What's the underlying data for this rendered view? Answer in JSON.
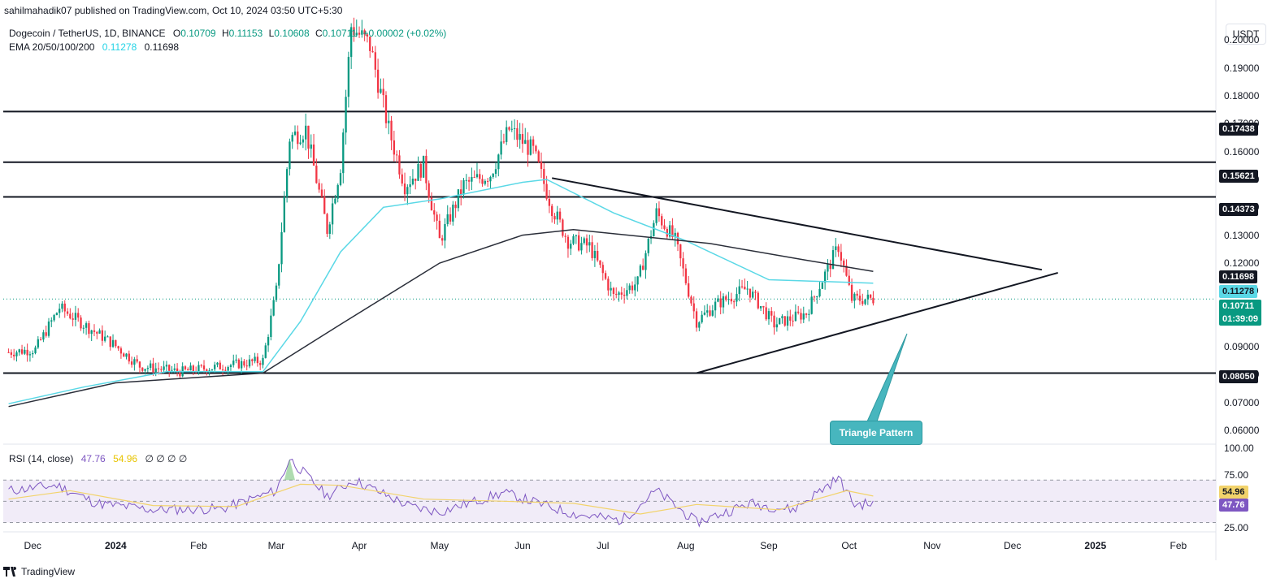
{
  "header": {
    "publisher": "sahilmahadik07 published on TradingView.com, Oct 10, 2024 03:50 UTC+5:30",
    "symbol": "Dogecoin / TetherUS, 1D, BINANCE",
    "ohlc": {
      "o_label": "O",
      "o": "0.10709",
      "h_label": "H",
      "h": "0.11153",
      "l_label": "L",
      "l": "0.10608",
      "c_label": "C",
      "c": "0.10711",
      "change": "+0.00002 (+0.02%)"
    },
    "ema_label": "EMA 20/50/100/200",
    "ema_values": [
      "0.11278",
      "0.11698"
    ],
    "unit": "USDT"
  },
  "rsi_header": {
    "label": "RSI (14, close)",
    "rsi": "47.76",
    "ma": "54.96",
    "extras": "∅ ∅ ∅ ∅"
  },
  "price_axis": [
    "0.20000",
    "0.19000",
    "0.18000",
    "0.17000",
    "0.16000",
    "0.15000",
    "0.14000",
    "0.13000",
    "0.12000",
    "0.11000",
    "0.10000",
    "0.09000",
    "0.08000",
    "0.07000",
    "0.06000"
  ],
  "rsi_axis": [
    "100.00",
    "75.00",
    "25.00"
  ],
  "time_axis": [
    "Dec",
    "2024",
    "Feb",
    "Mar",
    "Apr",
    "May",
    "Jun",
    "Jul",
    "Aug",
    "Sep",
    "Oct",
    "Nov",
    "Dec",
    "2025",
    "Feb"
  ],
  "levels": {
    "r1": "0.17438",
    "r2": "0.15621",
    "r3": "0.14373",
    "s1": "0.08050",
    "ema200": "0.11698",
    "ema50": "0.11278",
    "last": "0.10711",
    "countdown": "01:39:09",
    "rsi_ma": "54.96",
    "rsi_val": "47.76"
  },
  "annotation": "Triangle Pattern",
  "footer": {
    "logo": "TradingView"
  },
  "colors": {
    "up": "#089981",
    "down": "#f23645",
    "ema50": "#5ad8e6",
    "ema200": "#2a2e39",
    "rsi": "#7e57c2",
    "rsi_ma": "#f2d36b",
    "band": "#ede7f6",
    "pattern": "#47b6be"
  },
  "chart_data": {
    "type": "candlestick",
    "title": "Dogecoin / TetherUS, 1D, BINANCE",
    "y_scale": "linear",
    "ylim": [
      0.055,
      0.208
    ],
    "x_range": [
      "2023-11-20",
      "2025-02-15"
    ],
    "horizontal_levels": [
      0.17438,
      0.15621,
      0.14373,
      0.0805
    ],
    "triangle": {
      "upper": [
        [
          "2024-06-12",
          0.1505
        ],
        [
          "2024-12-12",
          0.1176
        ]
      ],
      "lower": [
        [
          "2024-08-05",
          0.0805
        ],
        [
          "2024-12-18",
          0.1165
        ]
      ]
    },
    "price_path": [
      [
        "2023-11-22",
        0.088
      ],
      [
        "2023-12-02",
        0.089
      ],
      [
        "2023-12-11",
        0.104
      ],
      [
        "2023-12-20",
        0.098
      ],
      [
        "2023-12-31",
        0.091
      ],
      [
        "2024-01-10",
        0.083
      ],
      [
        "2024-01-25",
        0.081
      ],
      [
        "2024-02-10",
        0.083
      ],
      [
        "2024-02-25",
        0.085
      ],
      [
        "2024-03-01",
        0.11
      ],
      [
        "2024-03-06",
        0.165
      ],
      [
        "2024-03-12",
        0.168
      ],
      [
        "2024-03-20",
        0.132
      ],
      [
        "2024-03-25",
        0.155
      ],
      [
        "2024-03-29",
        0.205
      ],
      [
        "2024-04-05",
        0.198
      ],
      [
        "2024-04-12",
        0.168
      ],
      [
        "2024-04-18",
        0.148
      ],
      [
        "2024-04-25",
        0.155
      ],
      [
        "2024-05-01",
        0.128
      ],
      [
        "2024-05-10",
        0.148
      ],
      [
        "2024-05-20",
        0.152
      ],
      [
        "2024-05-27",
        0.168
      ],
      [
        "2024-06-05",
        0.16
      ],
      [
        "2024-06-12",
        0.14
      ],
      [
        "2024-06-18",
        0.128
      ],
      [
        "2024-06-26",
        0.126
      ],
      [
        "2024-07-05",
        0.108
      ],
      [
        "2024-07-14",
        0.113
      ],
      [
        "2024-07-21",
        0.138
      ],
      [
        "2024-07-28",
        0.128
      ],
      [
        "2024-08-05",
        0.099
      ],
      [
        "2024-08-12",
        0.105
      ],
      [
        "2024-08-24",
        0.111
      ],
      [
        "2024-09-03",
        0.098
      ],
      [
        "2024-09-15",
        0.102
      ],
      [
        "2024-09-27",
        0.126
      ],
      [
        "2024-10-02",
        0.107
      ],
      [
        "2024-10-10",
        0.10711
      ]
    ],
    "ema50_path": [
      [
        "2023-11-22",
        0.0695
      ],
      [
        "2023-12-20",
        0.0755
      ],
      [
        "2024-01-20",
        0.081
      ],
      [
        "2024-02-25",
        0.081
      ],
      [
        "2024-03-10",
        0.099
      ],
      [
        "2024-03-25",
        0.124
      ],
      [
        "2024-04-10",
        0.14
      ],
      [
        "2024-05-01",
        0.143
      ],
      [
        "2024-06-01",
        0.149
      ],
      [
        "2024-06-10",
        0.15
      ],
      [
        "2024-07-05",
        0.138
      ],
      [
        "2024-08-01",
        0.128
      ],
      [
        "2024-09-01",
        0.114
      ],
      [
        "2024-10-10",
        0.11278
      ]
    ],
    "ema200_path": [
      [
        "2023-11-22",
        0.0685
      ],
      [
        "2024-01-01",
        0.077
      ],
      [
        "2024-02-25",
        0.0805
      ],
      [
        "2024-03-25",
        0.098
      ],
      [
        "2024-05-01",
        0.12
      ],
      [
        "2024-06-01",
        0.13
      ],
      [
        "2024-06-20",
        0.132
      ],
      [
        "2024-08-10",
        0.127
      ],
      [
        "2024-09-15",
        0.121
      ],
      [
        "2024-10-10",
        0.11698
      ]
    ],
    "rsi": {
      "ylim": [
        25,
        100
      ],
      "band": [
        30,
        70
      ],
      "path": [
        [
          "2023-11-22",
          60
        ],
        [
          "2023-12-10",
          65
        ],
        [
          "2023-12-25",
          48
        ],
        [
          "2024-01-15",
          42
        ],
        [
          "2024-02-10",
          43
        ],
        [
          "2024-03-01",
          60
        ],
        [
          "2024-03-06",
          90
        ],
        [
          "2024-03-20",
          55
        ],
        [
          "2024-03-30",
          70
        ],
        [
          "2024-04-20",
          45
        ],
        [
          "2024-05-01",
          40
        ],
        [
          "2024-05-25",
          58
        ],
        [
          "2024-06-20",
          38
        ],
        [
          "2024-07-08",
          32
        ],
        [
          "2024-07-21",
          60
        ],
        [
          "2024-08-05",
          30
        ],
        [
          "2024-08-25",
          48
        ],
        [
          "2024-09-10",
          42
        ],
        [
          "2024-09-27",
          72
        ],
        [
          "2024-10-03",
          47
        ],
        [
          "2024-10-10",
          47.76
        ]
      ],
      "ma_path": [
        [
          "2023-11-22",
          52
        ],
        [
          "2023-12-15",
          60
        ],
        [
          "2024-01-15",
          46
        ],
        [
          "2024-02-15",
          45
        ],
        [
          "2024-03-10",
          66
        ],
        [
          "2024-03-25",
          65
        ],
        [
          "2024-04-25",
          52
        ],
        [
          "2024-05-25",
          50
        ],
        [
          "2024-06-20",
          48
        ],
        [
          "2024-07-15",
          38
        ],
        [
          "2024-08-05",
          47
        ],
        [
          "2024-09-05",
          42
        ],
        [
          "2024-09-30",
          60
        ],
        [
          "2024-10-10",
          54.96
        ]
      ]
    }
  }
}
